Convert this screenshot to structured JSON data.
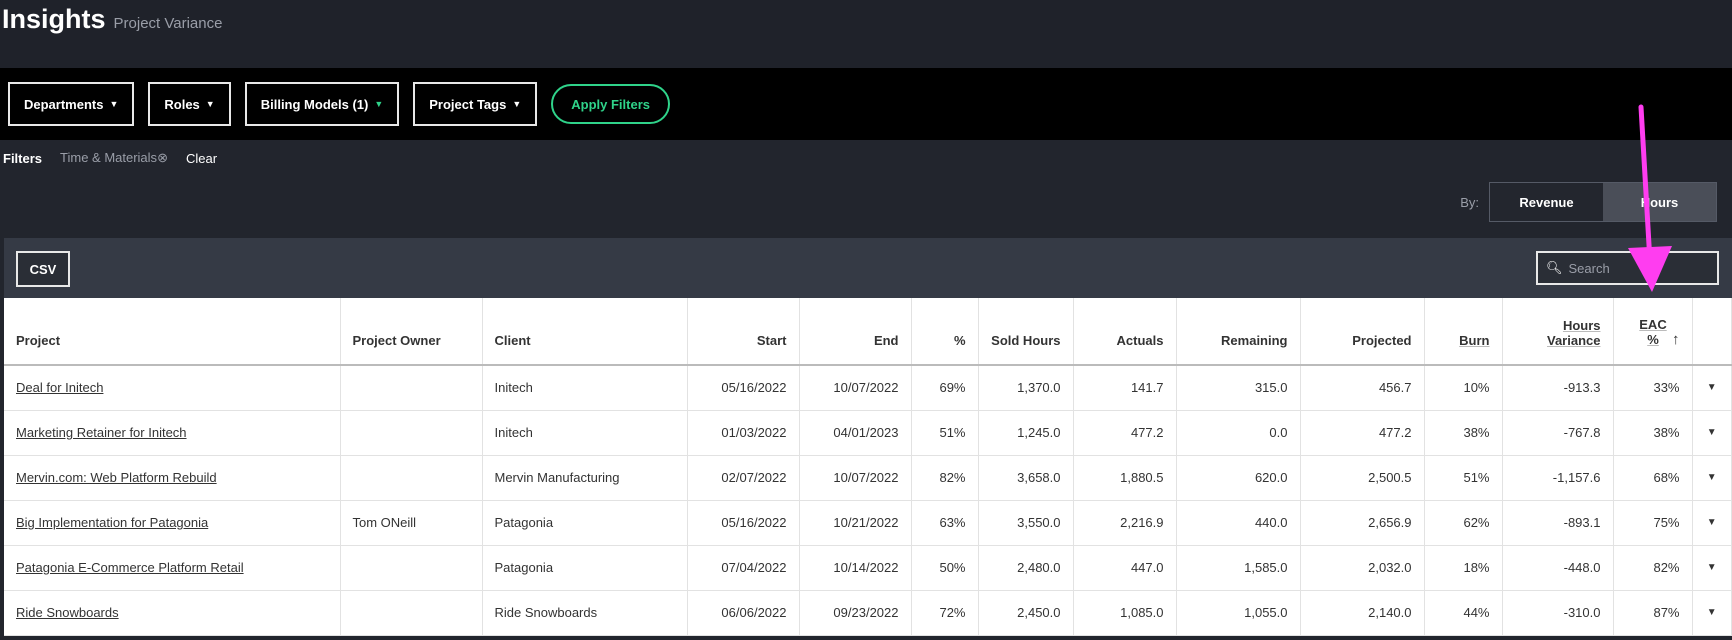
{
  "header": {
    "title": "Insights",
    "subtitle": "Project Variance"
  },
  "filters": {
    "buttons": [
      "Departments",
      "Roles",
      "Billing Models (1)",
      "Project Tags"
    ],
    "apply": "Apply Filters",
    "label": "Filters",
    "active_chip": "Time & Materials",
    "clear": "Clear"
  },
  "toggle": {
    "label": "By:",
    "options": [
      "Revenue",
      "Hours"
    ],
    "selected": "Revenue"
  },
  "toolbar": {
    "csv": "CSV",
    "search_placeholder": "Search"
  },
  "colors": {
    "accent": "#2fd38a",
    "annotation_arrow": "#ff3df0"
  },
  "table": {
    "columns": [
      "Project",
      "Project Owner",
      "Client",
      "Start",
      "End",
      "%",
      "Sold Hours",
      "Actuals",
      "Remaining",
      "Projected",
      "Burn",
      "Hours Variance",
      "EAC %"
    ],
    "sorted_column": "EAC %",
    "sort_direction": "ascending",
    "rows": [
      [
        "Deal for Initech",
        "",
        "Initech",
        "05/16/2022",
        "10/07/2022",
        "69%",
        "1,370.0",
        "141.7",
        "315.0",
        "456.7",
        "10%",
        "-913.3",
        "33%"
      ],
      [
        "Marketing Retainer for Initech",
        "",
        "Initech",
        "01/03/2022",
        "04/01/2023",
        "51%",
        "1,245.0",
        "477.2",
        "0.0",
        "477.2",
        "38%",
        "-767.8",
        "38%"
      ],
      [
        "Mervin.com: Web Platform Rebuild",
        "",
        "Mervin Manufacturing",
        "02/07/2022",
        "10/07/2022",
        "82%",
        "3,658.0",
        "1,880.5",
        "620.0",
        "2,500.5",
        "51%",
        "-1,157.6",
        "68%"
      ],
      [
        "Big Implementation for Patagonia",
        "Tom ONeill",
        "Patagonia",
        "05/16/2022",
        "10/21/2022",
        "63%",
        "3,550.0",
        "2,216.9",
        "440.0",
        "2,656.9",
        "62%",
        "-893.1",
        "75%"
      ],
      [
        "Patagonia E-Commerce Platform Retail",
        "",
        "Patagonia",
        "07/04/2022",
        "10/14/2022",
        "50%",
        "2,480.0",
        "447.0",
        "1,585.0",
        "2,032.0",
        "18%",
        "-448.0",
        "82%"
      ],
      [
        "Ride Snowboards",
        "",
        "Ride Snowboards",
        "06/06/2022",
        "09/23/2022",
        "72%",
        "2,450.0",
        "1,085.0",
        "1,055.0",
        "2,140.0",
        "44%",
        "-310.0",
        "87%"
      ]
    ]
  }
}
